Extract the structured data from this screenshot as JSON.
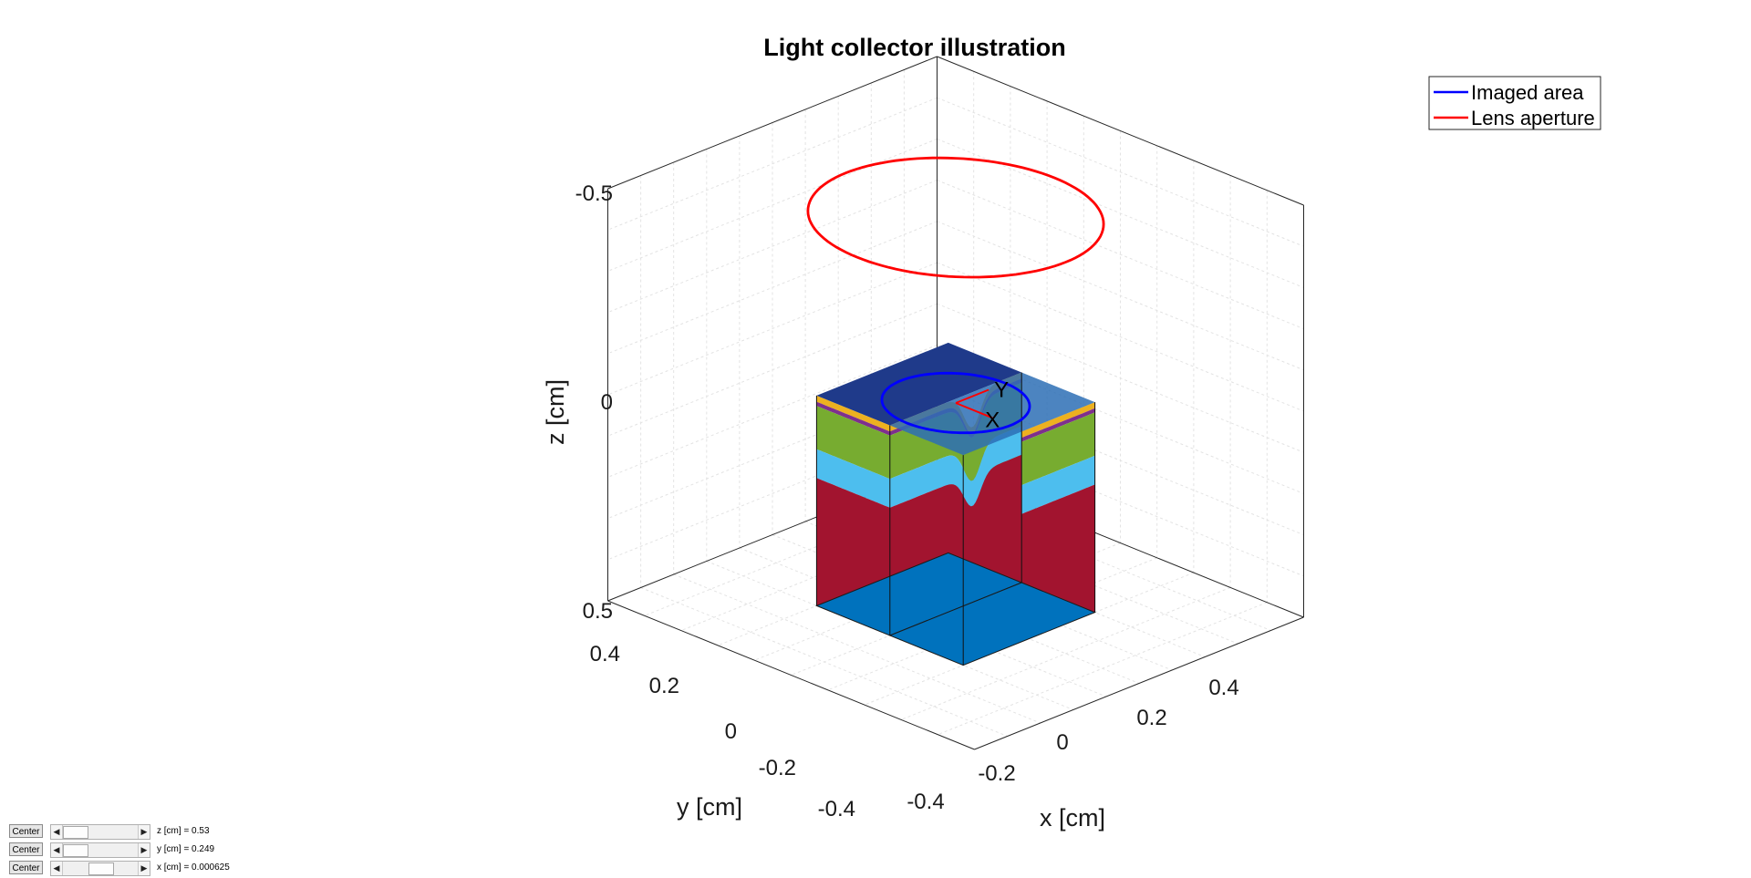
{
  "chart_data": {
    "type": "3d-surface",
    "title": "Light collector illustration",
    "xlabel": "x [cm]",
    "ylabel": "y [cm]",
    "zlabel": "z [cm]",
    "xlim": [
      -0.5,
      0.5
    ],
    "ylim": [
      -0.5,
      0.5
    ],
    "zlim": [
      -0.5,
      0.5
    ],
    "z_reversed": true,
    "grid": "on",
    "x_ticks": [
      "-0.4",
      "-0.2",
      "0",
      "0.2",
      "0.4"
    ],
    "y_ticks": [
      "0.4",
      "0.2",
      "0",
      "-0.2",
      "-0.4"
    ],
    "z_ticks": [
      "-0.5",
      "0",
      "0.5"
    ],
    "legend": [
      {
        "label": "Imaged area",
        "color": "#0000ff"
      },
      {
        "label": "Lens aperture",
        "color": "#ff0000"
      }
    ],
    "legend_position": "top-right",
    "frame_axes": [
      {
        "label": "X",
        "color": "#ff0000"
      },
      {
        "label": "Y",
        "color": "#ff0000"
      }
    ],
    "imaged_area_radius": 0.2,
    "lens_aperture_radius": 0.5,
    "lens_aperture_z": -0.5,
    "layer_colors": {
      "top_dark": "#1f3a8a",
      "orange": "#edb120",
      "purple": "#7e2f8e",
      "green": "#77ac30",
      "light_blue": "#4dbeee",
      "red": "#a2142f",
      "bottom": "#0072bd"
    }
  },
  "controls": [
    {
      "button": "Center",
      "readout": "z [cm] = 0.53",
      "position": 0.0
    },
    {
      "button": "Center",
      "readout": "y [cm] = 0.249",
      "position": 0.0
    },
    {
      "button": "Center",
      "readout": "x [cm] = 0.000625",
      "position": 0.5
    }
  ]
}
